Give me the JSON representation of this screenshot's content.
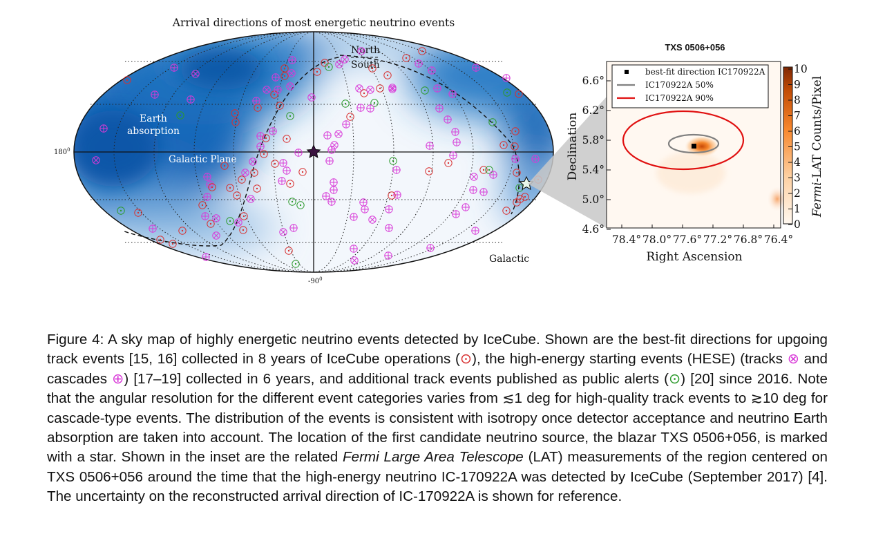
{
  "skymap": {
    "title": "Arrival directions of most energetic neutrino events",
    "label_north": "North",
    "label_south": "South",
    "label_earth_abs_1": "Earth",
    "label_earth_abs_2": "absorption",
    "label_galactic_plane": "Galactic Plane",
    "label_galactic": "Galactic",
    "label_180": "180",
    "label_180_sup": "0",
    "label_m90": "-90",
    "label_m90_sup": "0",
    "star_marker": "TXS 0506+056 location"
  },
  "inset": {
    "title": "TXS 0506+056",
    "legend": {
      "best_fit": "best-fit direction IC170922A",
      "c50": "IC170922A 50%",
      "c90": "IC170922A 90%"
    },
    "colors": {
      "c50": "#808080",
      "c90": "#e01010",
      "bestfit": "#000000"
    },
    "xlabel": "Right Ascension",
    "ylabel": "Declination",
    "colorbar_label_italic": "Fermi",
    "colorbar_label_rest": "-LAT Counts/Pixel",
    "xticks": [
      "78.4°",
      "78.0°",
      "77.6°",
      "77.2°",
      "76.8°",
      "76.4°"
    ],
    "yticks": [
      "6.6°",
      "6.2°",
      "5.8°",
      "5.4°",
      "5.0°",
      "4.6°"
    ],
    "cbar_ticks": [
      "10",
      "9",
      "8",
      "7",
      "6",
      "5",
      "4",
      "3",
      "2",
      "1",
      "0"
    ]
  },
  "caption": {
    "p1": "Figure 4: A sky map of highly energetic neutrino events detected by IceCube. Shown are the best-fit directions for upgoing track events [15, 16] collected in 8 years of IceCube operations (",
    "s1": "⊙",
    "p2": "), the high-energy starting events (HESE) (tracks ",
    "s2": "⊗",
    "p3": " and cascades ",
    "s3": "⊕",
    "p4": ") [17–19] collected in 6 years, and additional track events published as public alerts (",
    "s4": "⊙",
    "p5": ") [20] since 2016. Note that the angular resolution for the different event categories varies from ≲1 deg for high-quality track events to ≳10 deg for cascade-type events. The distribution of the events is consistent with isotropy once detector acceptance and neutrino Earth absorption are taken into account. The location of the first candidate neutrino source, the blazar TXS 0506+056, is marked with a star. Shown in the inset are the related ",
    "p6_italic": "Fermi Large Area Telescope",
    "p7": " (LAT) measurements of the region centered on TXS 0506+056 around the time that the high-energy neutrino IC-170922A was detected by IceCube (September 2017) [4]. The uncertainty on the reconstructed arrival direction of IC-170922A is shown for reference."
  }
}
